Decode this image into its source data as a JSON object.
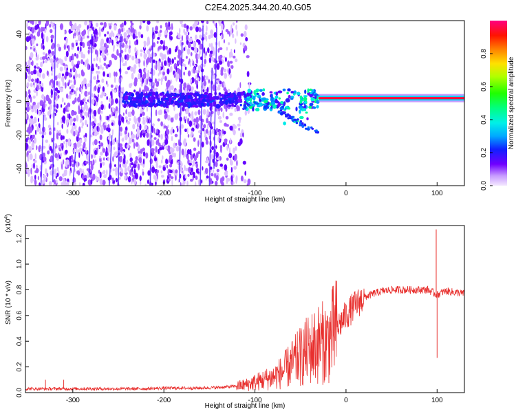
{
  "title": "C2E4.2025.344.20.40.G05",
  "colors": {
    "snr_line": "#e8302e",
    "spec_low": "#6a00ff",
    "spec_mid": "#00ffc8",
    "spec_high": "#ff0000"
  },
  "chart_data": [
    {
      "type": "heatmap",
      "title": "C2E4.2025.344.20.40.G05",
      "xlabel": "Height of straight line (km)",
      "ylabel": "Frequency (Hz)",
      "xlim": [
        -352,
        130
      ],
      "ylim": [
        -50,
        48
      ],
      "x_ticks": [
        -300,
        -200,
        -100,
        0,
        100
      ],
      "y_ticks": [
        -40,
        -20,
        0,
        20,
        40
      ],
      "x_tick_labels": [
        "-300",
        "-200",
        "-100",
        "0",
        "100"
      ],
      "y_tick_labels": [
        "-40",
        "-20",
        "0",
        "20",
        "40"
      ],
      "colorbar": {
        "label": "Normalized spectral amplitude",
        "range": [
          0.0,
          1.0
        ],
        "ticks": [
          0.0,
          0.2,
          0.4,
          0.6,
          0.8
        ],
        "tick_labels": [
          "0.0",
          "0.2",
          "0.4",
          "0.6",
          "0.8"
        ],
        "colormap": "rainbow (violet to red)"
      },
      "features": [
        {
          "desc": "noise region",
          "x_range": [
            -352,
            -110
          ],
          "freq_range": [
            -50,
            48
          ],
          "amplitude": 0.1
        },
        {
          "desc": "signal band",
          "x_range": [
            -115,
            -30
          ],
          "center_freq": 1,
          "amplitude": 0.4
        },
        {
          "desc": "strong carrier",
          "x_range": [
            -30,
            130
          ],
          "center_freq": 2,
          "amplitude": 0.95
        }
      ]
    },
    {
      "type": "line",
      "xlabel": "Height of straight line (km)",
      "ylabel": "SNR (10 * v/v)",
      "scale_label": "(x10",
      "scale_exp": "4",
      "xlim": [
        -352,
        130
      ],
      "ylim": [
        0,
        1.3
      ],
      "x_ticks": [
        -300,
        -200,
        -100,
        0,
        100
      ],
      "y_ticks": [
        0.0,
        0.2,
        0.4,
        0.6,
        0.8,
        1.0,
        1.2
      ],
      "x_tick_labels": [
        "-300",
        "-200",
        "-100",
        "0",
        "100"
      ],
      "y_tick_labels": [
        "0.0",
        "0.2",
        "0.4",
        "0.6",
        "0.8",
        "1.0",
        "1.2"
      ],
      "series": [
        {
          "x": [
            -352,
            -340,
            -320,
            -300,
            -280,
            -260,
            -240,
            -220,
            -200,
            -180,
            -160,
            -140,
            -120,
            -110,
            -100,
            -90,
            -80,
            -70,
            -60,
            -50,
            -40,
            -30,
            -20,
            -10,
            0,
            10,
            20,
            30,
            40,
            50,
            60,
            70,
            80,
            90,
            95,
            100,
            105,
            110,
            120,
            130
          ],
          "y": [
            0.03,
            0.03,
            0.03,
            0.03,
            0.03,
            0.03,
            0.03,
            0.03,
            0.035,
            0.035,
            0.035,
            0.04,
            0.05,
            0.06,
            0.08,
            0.1,
            0.12,
            0.16,
            0.22,
            0.28,
            0.34,
            0.38,
            0.4,
            0.5,
            0.6,
            0.68,
            0.74,
            0.77,
            0.79,
            0.8,
            0.8,
            0.8,
            0.8,
            0.8,
            0.78,
            0.76,
            0.78,
            0.79,
            0.78,
            0.77
          ]
        }
      ],
      "spikes": [
        {
          "x": -11,
          "y": 0.87
        },
        {
          "x": -330,
          "y": 0.1
        },
        {
          "x": -310,
          "y": 0.1
        },
        {
          "x": 99,
          "y": 1.27
        },
        {
          "x": 100,
          "y": 0.27
        }
      ]
    }
  ]
}
